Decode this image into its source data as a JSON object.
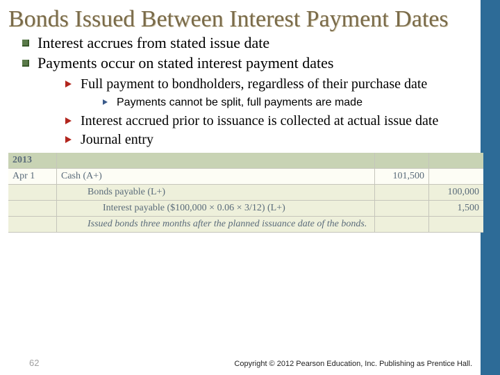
{
  "title": "Bonds Issued Between Interest Payment Dates",
  "bullets": {
    "b1": "Interest accrues from stated issue date",
    "b2": "Payments occur on stated interest payment dates",
    "s1": "Full payment to bondholders, regardless of their purchase date",
    "t1": "Payments cannot be split, full payments are made",
    "s2": "Interest accrued prior to issuance is collected at actual issue date",
    "s3": "Journal entry"
  },
  "journal": {
    "year": "2013",
    "date": "Apr 1",
    "row1": {
      "desc": "Cash        (A+)",
      "dr": "101,500"
    },
    "row2": {
      "desc": "Bonds payable        (L+)",
      "cr": "100,000"
    },
    "row3": {
      "desc": "Interest payable  ($100,000 × 0.06 × 3/12)        (L+)",
      "cr": "1,500"
    },
    "note": "Issued bonds three months after the planned issuance date of the bonds."
  },
  "page": "62",
  "copyright": "Copyright © 2012 Pearson Education, Inc. Publishing as Prentice Hall."
}
